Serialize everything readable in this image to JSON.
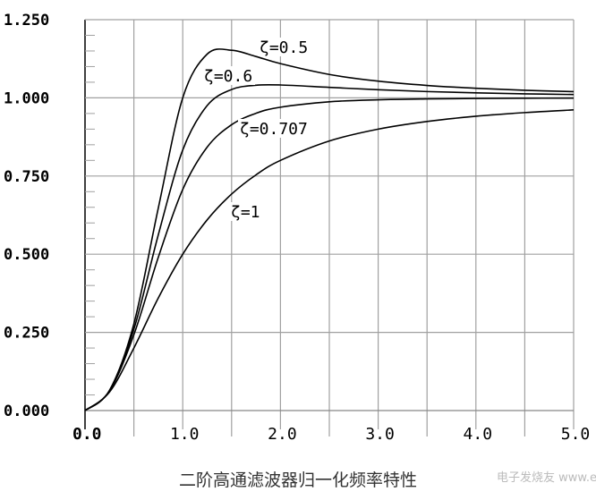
{
  "chart_data": {
    "type": "line",
    "title": "二阶高通滤波器归一化频率特性",
    "xlabel": "",
    "ylabel": "",
    "xlim": [
      0,
      5
    ],
    "ylim": [
      0,
      1.25
    ],
    "grid": true,
    "x_ticks": [
      "0.0",
      "1.0",
      "2.0",
      "3.0",
      "4.0",
      "5.0"
    ],
    "y_ticks": [
      "0.000",
      "0.250",
      "0.500",
      "0.750",
      "1.000",
      "1.250"
    ],
    "x": [
      0,
      0.25,
      0.5,
      0.75,
      1.0,
      1.25,
      1.5,
      1.75,
      2.0,
      2.5,
      3.0,
      3.5,
      4.0,
      4.5,
      5.0
    ],
    "series": [
      {
        "name": "ζ=0.5",
        "values": [
          0,
          0.0644,
          0.2774,
          0.6478,
          1.0,
          1.1399,
          1.1523,
          1.1322,
          1.1094,
          1.0748,
          1.0534,
          1.0397,
          1.0307,
          1.0243,
          1.0198
        ]
      },
      {
        "name": "ζ=0.6",
        "values": [
          0,
          0.0635,
          0.2603,
          0.5621,
          0.8333,
          0.9753,
          1.0267,
          1.0404,
          1.0412,
          1.0336,
          1.0259,
          1.0201,
          1.0159,
          1.0129,
          1.0106
        ]
      },
      {
        "name": "ζ=0.707",
        "values": [
          0,
          0.0624,
          0.2425,
          0.4903,
          0.7072,
          0.8424,
          0.914,
          0.9507,
          0.9701,
          0.9874,
          0.9939,
          0.9967,
          0.9981,
          0.9988,
          0.9992
        ]
      },
      {
        "name": "ζ=1",
        "values": [
          0,
          0.0588,
          0.2,
          0.36,
          0.5,
          0.6098,
          0.6923,
          0.7538,
          0.8,
          0.8621,
          0.9,
          0.9245,
          0.9412,
          0.9529,
          0.9615
        ]
      }
    ],
    "line_color": "#000000",
    "grid_color": "#a0a0a0"
  },
  "watermark": "电子发烧友 www.elecfans.com"
}
